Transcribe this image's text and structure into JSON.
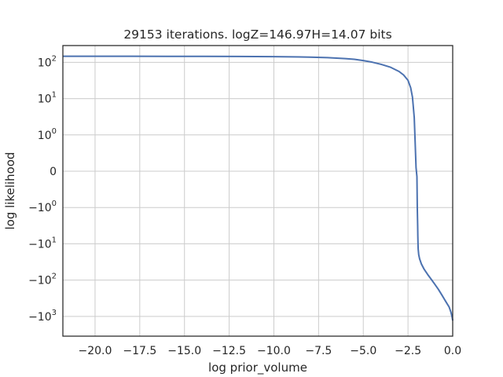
{
  "chart_data": {
    "type": "line",
    "title": "29153 iterations. logZ=146.97H=14.07 bits",
    "xlabel": "log prior_volume",
    "ylabel": "log likelihood",
    "xlim": [
      -21.8,
      0.0
    ],
    "ylim": [
      -3500,
      290
    ],
    "yscale": "symlog",
    "grid": true,
    "x_ticks": [
      {
        "value": -20.0,
        "label": "−20.0"
      },
      {
        "value": -17.5,
        "label": "−17.5"
      },
      {
        "value": -15.0,
        "label": "−15.0"
      },
      {
        "value": -12.5,
        "label": "−12.5"
      },
      {
        "value": -10.0,
        "label": "−10.0"
      },
      {
        "value": -7.5,
        "label": "−7.5"
      },
      {
        "value": -5.0,
        "label": "−5.0"
      },
      {
        "value": -2.5,
        "label": "−2.5"
      },
      {
        "value": 0.0,
        "label": "0.0"
      }
    ],
    "y_ticks": [
      {
        "value": 100,
        "base": "10",
        "exp": "2"
      },
      {
        "value": 10,
        "base": "10",
        "exp": "1"
      },
      {
        "value": 1,
        "base": "10",
        "exp": "0"
      },
      {
        "value": 0,
        "base": "0",
        "exp": ""
      },
      {
        "value": -1,
        "base": "−10",
        "exp": "0"
      },
      {
        "value": -10,
        "base": "−10",
        "exp": "1"
      },
      {
        "value": -100,
        "base": "−10",
        "exp": "2"
      },
      {
        "value": -1000,
        "base": "−10",
        "exp": "3"
      }
    ],
    "series": [
      {
        "color": "#4c72b0",
        "x": [
          -21.8,
          -20,
          -18,
          -16,
          -14,
          -12,
          -10,
          -9,
          -8,
          -7,
          -6,
          -5.5,
          -5,
          -4.5,
          -4,
          -3.5,
          -3,
          -2.75,
          -2.5,
          -2.35,
          -2.25,
          -2.15,
          -2.1,
          -2.05,
          -2.0,
          -1.98,
          -1.96,
          -1.95,
          -1.94,
          -1.93,
          -1.9,
          -1.85,
          -1.75,
          -1.6,
          -1.4,
          -1.2,
          -1.0,
          -0.8,
          -0.6,
          -0.4,
          -0.2,
          -0.1,
          -0.03,
          0.0
        ],
        "y": [
          146.97,
          146.9,
          146.7,
          146.4,
          146.0,
          145.2,
          143.5,
          141.8,
          139.0,
          134.5,
          127.0,
          121.0,
          112.0,
          101.0,
          88.0,
          74.0,
          56.0,
          45.0,
          32.0,
          20.0,
          11.0,
          3.0,
          0.8,
          0.1,
          -0.15,
          -1.0,
          -3.0,
          -6.0,
          -10.0,
          -14.0,
          -20.0,
          -26.0,
          -36.0,
          -50.0,
          -70.0,
          -95.0,
          -130.0,
          -180.0,
          -260.0,
          -380.0,
          -550.0,
          -760.0,
          -1050.0,
          -1300.0
        ]
      }
    ]
  }
}
